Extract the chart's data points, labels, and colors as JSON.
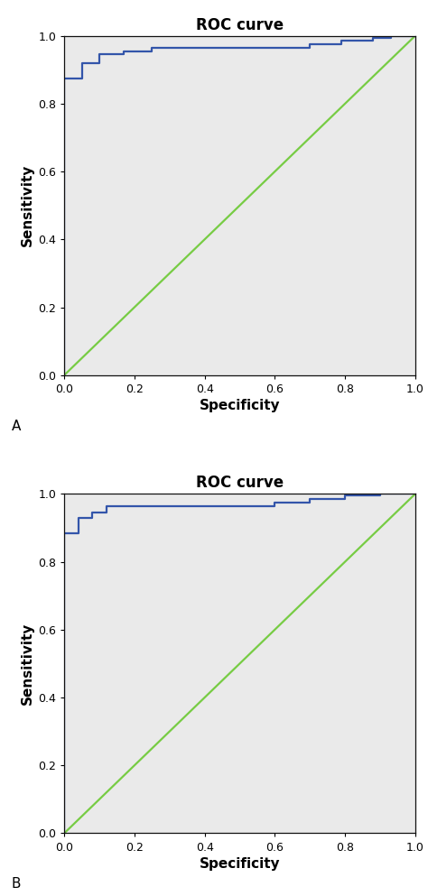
{
  "title": "ROC curve",
  "xlabel": "Specificity",
  "ylabel": "Sensitivity",
  "panel_A_label": "A",
  "panel_B_label": "B",
  "roc_color": "#3355aa",
  "diag_color": "#77cc44",
  "bg_color": "#eaeaea",
  "roc_linewidth": 1.6,
  "diag_linewidth": 1.6,
  "title_fontsize": 12,
  "label_fontsize": 11,
  "tick_fontsize": 9,
  "panel_label_fontsize": 11,
  "curve_A_x": [
    0.0,
    0.0,
    0.05,
    0.05,
    0.1,
    0.1,
    0.17,
    0.17,
    0.25,
    0.25,
    0.7,
    0.7,
    0.79,
    0.79,
    0.88,
    0.88,
    0.93,
    0.93,
    1.0
  ],
  "curve_A_y": [
    0.0,
    0.875,
    0.875,
    0.92,
    0.92,
    0.945,
    0.945,
    0.955,
    0.955,
    0.965,
    0.965,
    0.975,
    0.975,
    0.985,
    0.985,
    0.995,
    0.995,
    1.0,
    1.0
  ],
  "curve_B_x": [
    0.0,
    0.0,
    0.04,
    0.04,
    0.08,
    0.08,
    0.12,
    0.12,
    0.6,
    0.6,
    0.7,
    0.7,
    0.8,
    0.8,
    0.9,
    0.9,
    1.0
  ],
  "curve_B_y": [
    0.0,
    0.885,
    0.885,
    0.93,
    0.93,
    0.945,
    0.945,
    0.965,
    0.965,
    0.975,
    0.975,
    0.985,
    0.985,
    0.995,
    0.995,
    1.0,
    1.0
  ],
  "xlim": [
    0.0,
    1.0
  ],
  "ylim": [
    0.0,
    1.0
  ],
  "xticks": [
    0.0,
    0.2,
    0.4,
    0.6,
    0.8,
    1.0
  ],
  "yticks": [
    0.0,
    0.2,
    0.4,
    0.6,
    0.8,
    1.0
  ]
}
